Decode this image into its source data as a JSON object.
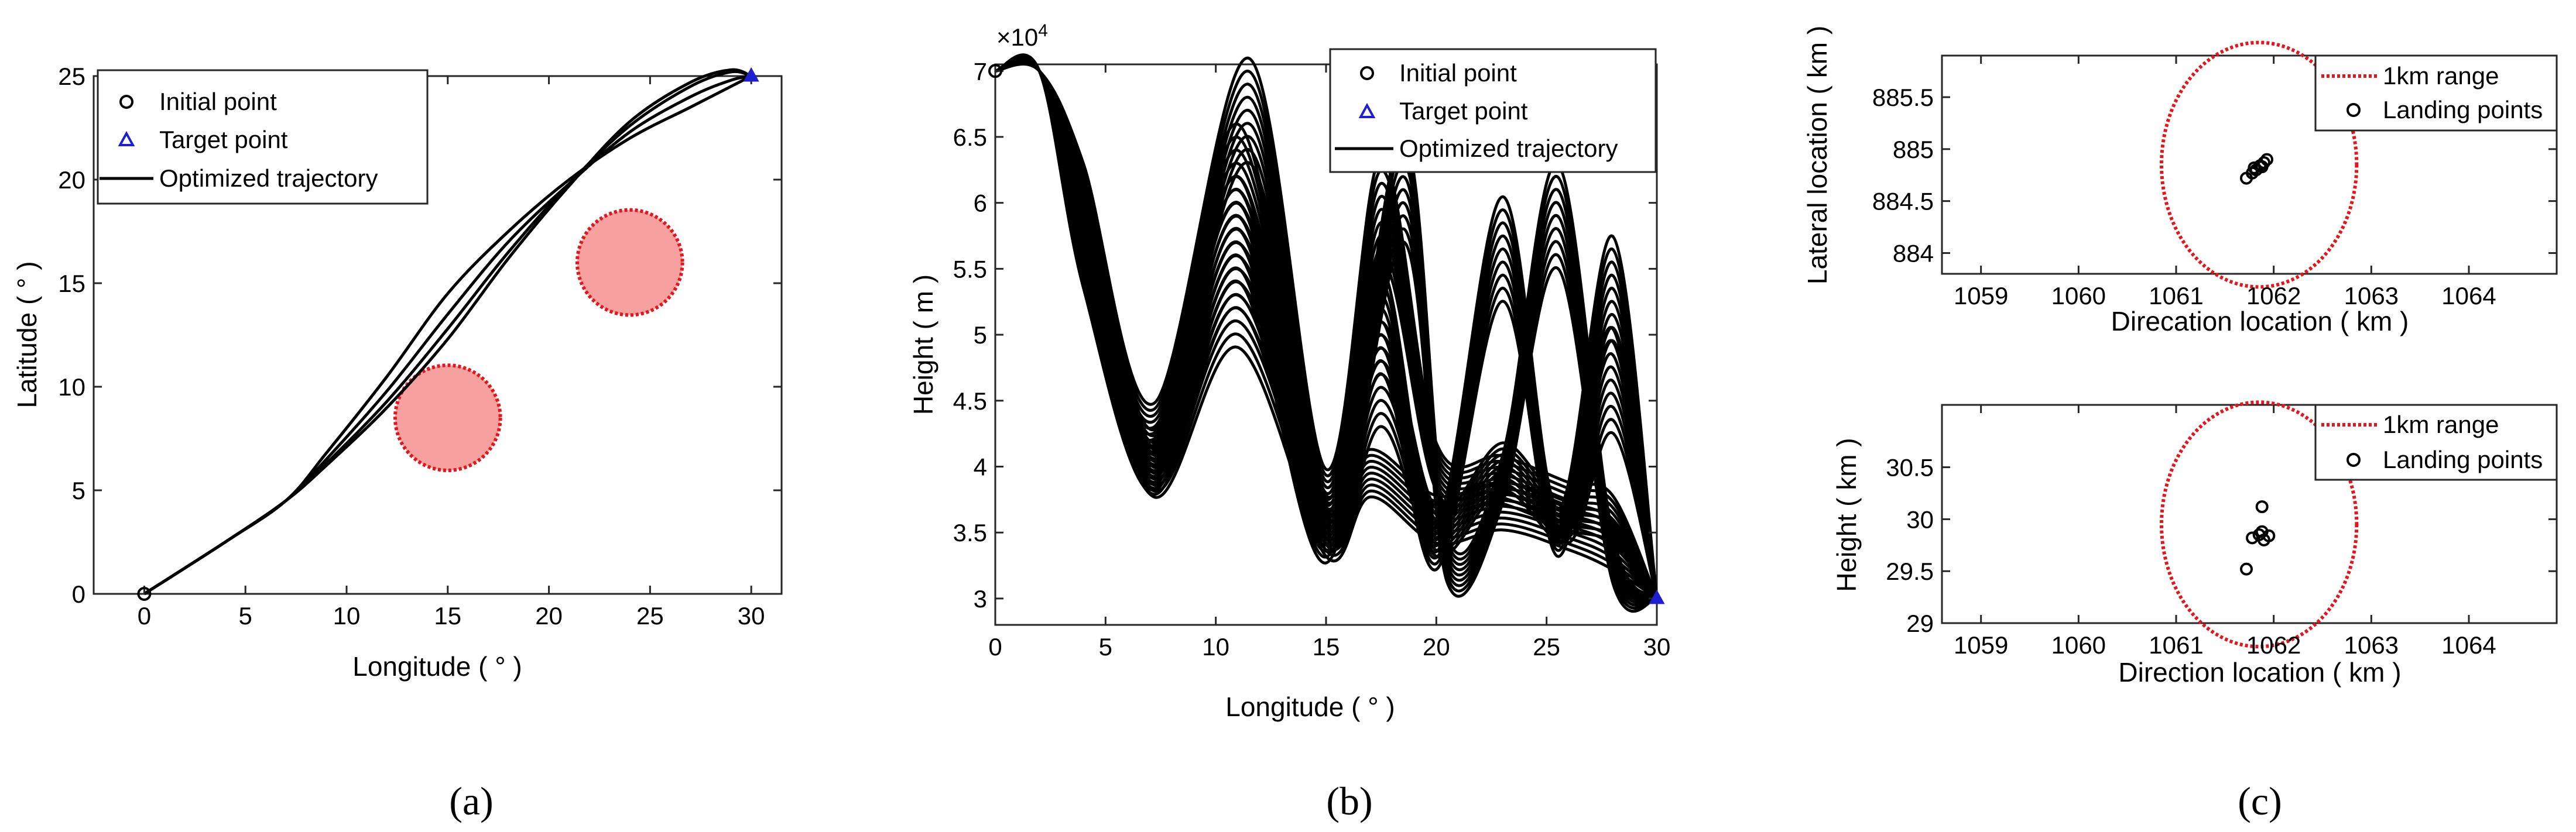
{
  "chart_data": [
    {
      "id": "a",
      "type": "line",
      "caption": "(a)",
      "xlabel": "Longitude ( ° )",
      "ylabel": "Latitude ( ° )",
      "xlim": [
        -2.5,
        31.5
      ],
      "ylim": [
        0,
        25
      ],
      "xticks": [
        0,
        5,
        10,
        15,
        20,
        25,
        30
      ],
      "yticks": [
        0,
        5,
        10,
        15,
        20,
        25
      ],
      "grid": false,
      "legend": {
        "position": "top-left",
        "entries": [
          "Initial point",
          "Target point",
          "Optimized trajectory"
        ]
      },
      "initial_point": [
        0,
        0
      ],
      "target_point": [
        30,
        25
      ],
      "no_fly_zones": [
        {
          "center": [
            15,
            8.5
          ],
          "radius_deg": 2.0
        },
        {
          "center": [
            24,
            16
          ],
          "radius_deg": 2.0
        }
      ],
      "series": [
        {
          "name": "Optimized trajectory",
          "x": [
            0,
            4,
            7,
            9,
            12,
            15,
            18,
            21,
            24,
            27,
            29,
            30
          ],
          "y": [
            0,
            2.5,
            4.5,
            6.8,
            10.5,
            14.5,
            17.5,
            20,
            22,
            23.5,
            24.5,
            25
          ]
        },
        {
          "name": "Optimized trajectory",
          "x": [
            0,
            4,
            7,
            9,
            12,
            15,
            18,
            21,
            24,
            27,
            29,
            30
          ],
          "y": [
            0,
            2.5,
            4.5,
            6.5,
            9.8,
            13.5,
            17,
            19.8,
            22.3,
            24,
            24.8,
            25
          ]
        },
        {
          "name": "Optimized trajectory",
          "x": [
            0,
            4,
            7,
            9,
            12,
            15,
            18,
            21,
            24,
            27,
            29,
            30
          ],
          "y": [
            0,
            2.5,
            4.5,
            6.3,
            9.3,
            12.8,
            16.5,
            19.8,
            22.6,
            24.5,
            25.2,
            25
          ]
        },
        {
          "name": "Optimized trajectory",
          "x": [
            0,
            4,
            7,
            9,
            12,
            15,
            18,
            21,
            24,
            27,
            29,
            30
          ],
          "y": [
            0,
            2.5,
            4.5,
            6.2,
            9.0,
            12.3,
            16.2,
            19.7,
            22.8,
            24.7,
            25.3,
            25
          ]
        }
      ]
    },
    {
      "id": "b",
      "type": "line",
      "caption": "(b)",
      "xlabel": "Longitude ( ° )",
      "ylabel": "Height ( m )",
      "y_exponent_label": "×10",
      "y_exponent_power": "4",
      "xlim": [
        0,
        30
      ],
      "ylim": [
        2.8,
        7.05
      ],
      "xticks": [
        0,
        5,
        10,
        15,
        20,
        25,
        30
      ],
      "yticks": [
        3,
        3.5,
        4,
        4.5,
        5,
        5.5,
        6,
        6.5,
        7
      ],
      "grid": false,
      "legend": {
        "position": "top-right",
        "entries": [
          "Initial point",
          "Target point",
          "Optimized trajectory"
        ]
      },
      "initial_point": [
        0,
        7
      ],
      "target_point": [
        30,
        3
      ],
      "series": [
        {
          "name": "Optimized trajectory",
          "x": [
            0,
            2,
            4,
            7.2,
            11,
            15,
            17,
            20,
            23,
            26,
            28,
            30
          ],
          "y": [
            7,
            7,
            5.8,
            3.95,
            5.3,
            3.5,
            3.95,
            3.6,
            3.7,
            3.55,
            3.4,
            3.0
          ]
        },
        {
          "name": "Optimized trajectory",
          "x": [
            0,
            2,
            4,
            7.2,
            11.5,
            15,
            17.5,
            20,
            23,
            26,
            28,
            30
          ],
          "y": [
            7,
            7,
            5.9,
            4.3,
            6.7,
            3.8,
            5.95,
            4.0,
            3.9,
            3.7,
            3.6,
            3.0
          ]
        },
        {
          "name": "Optimized trajectory",
          "x": [
            0,
            2,
            4,
            7.2,
            11,
            15,
            17.5,
            20,
            23,
            25.5,
            28,
            30
          ],
          "y": [
            7,
            7,
            5.85,
            4.1,
            6.2,
            3.6,
            5.1,
            3.4,
            5.65,
            3.5,
            5.35,
            3.0
          ]
        },
        {
          "name": "Optimized trajectory",
          "x": [
            0,
            2,
            4,
            7.2,
            11,
            15,
            18.5,
            20.5,
            23,
            25.5,
            28,
            30
          ],
          "y": [
            7,
            7,
            5.8,
            4.0,
            5.8,
            3.45,
            6.1,
            3.3,
            3.9,
            5.9,
            3.3,
            3.0
          ]
        },
        {
          "name": "Optimized trajectory",
          "x": [
            0,
            2,
            4,
            7.2,
            11,
            15,
            17.5,
            20,
            23,
            26,
            28,
            30
          ],
          "y": [
            7,
            7,
            5.75,
            3.97,
            5.6,
            3.55,
            4.7,
            3.5,
            4.0,
            3.6,
            4.65,
            3.0
          ]
        }
      ]
    },
    {
      "id": "c-top",
      "type": "scatter",
      "caption": "(c)",
      "xlabel": "Direcation location ( km )",
      "ylabel": "Lateral location ( km )",
      "xlim": [
        1058.6,
        1064.9
      ],
      "ylim": [
        883.8,
        885.9
      ],
      "xticks": [
        1059,
        1060,
        1061,
        1062,
        1063,
        1064
      ],
      "yticks": [
        884,
        884.5,
        885,
        885.5
      ],
      "grid": false,
      "legend": {
        "position": "top-right",
        "entries": [
          "1km range",
          "Landing points"
        ]
      },
      "range_circle": {
        "center": [
          1061.85,
          884.85
        ],
        "radius_km": 1
      },
      "landing_points": [
        {
          "x": 1061.72,
          "y": 884.72
        },
        {
          "x": 1061.78,
          "y": 884.77
        },
        {
          "x": 1061.82,
          "y": 884.8
        },
        {
          "x": 1061.86,
          "y": 884.84
        },
        {
          "x": 1061.9,
          "y": 884.87
        },
        {
          "x": 1061.93,
          "y": 884.9
        },
        {
          "x": 1061.8,
          "y": 884.82
        },
        {
          "x": 1061.88,
          "y": 884.83
        }
      ]
    },
    {
      "id": "c-bottom",
      "type": "scatter",
      "xlabel": "Direction location ( km )",
      "ylabel": "Height ( km )",
      "xlim": [
        1058.6,
        1064.9
      ],
      "ylim": [
        29,
        31.1
      ],
      "xticks": [
        1059,
        1060,
        1061,
        1062,
        1063,
        1064
      ],
      "yticks": [
        29,
        29.5,
        30,
        30.5
      ],
      "grid": false,
      "legend": {
        "position": "top-right",
        "entries": [
          "1km range",
          "Landing points"
        ]
      },
      "range_circle": {
        "center": [
          1061.85,
          29.95
        ],
        "radius_km": 1
      },
      "landing_points": [
        {
          "x": 1061.88,
          "y": 30.12
        },
        {
          "x": 1061.78,
          "y": 29.82
        },
        {
          "x": 1061.85,
          "y": 29.85
        },
        {
          "x": 1061.9,
          "y": 29.8
        },
        {
          "x": 1061.95,
          "y": 29.84
        },
        {
          "x": 1061.88,
          "y": 29.88
        },
        {
          "x": 1061.72,
          "y": 29.52
        }
      ]
    }
  ]
}
